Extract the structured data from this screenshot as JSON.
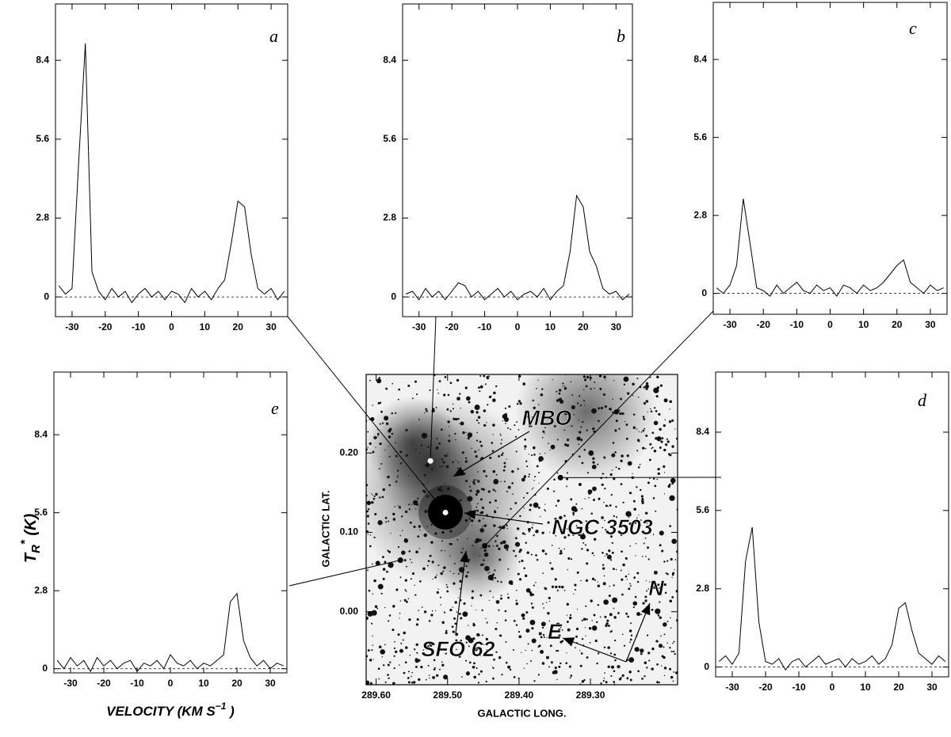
{
  "chart_data": [
    {
      "type": "line",
      "panel_label": "a",
      "x": [
        -34,
        -32,
        -30,
        -28,
        -26,
        -24,
        -22,
        -20,
        -18,
        -16,
        -14,
        -12,
        -10,
        -8,
        -6,
        -4,
        -2,
        0,
        2,
        4,
        6,
        8,
        10,
        12,
        14,
        16,
        18,
        20,
        22,
        24,
        26,
        28,
        30,
        32,
        34
      ],
      "values": [
        0.4,
        0.1,
        0.3,
        4.8,
        9.0,
        0.9,
        0.2,
        -0.1,
        0.3,
        0.0,
        0.2,
        -0.2,
        0.1,
        0.3,
        0.0,
        0.2,
        -0.1,
        0.2,
        0.1,
        -0.2,
        0.3,
        0.0,
        0.2,
        -0.1,
        0.3,
        0.6,
        1.9,
        3.4,
        3.2,
        1.5,
        0.3,
        0.1,
        0.3,
        -0.1,
        0.2
      ],
      "color": "#000000",
      "zero_line": true,
      "xlim": [
        -35,
        35
      ],
      "xticks": [
        -30,
        -20,
        -10,
        0,
        10,
        20,
        30
      ],
      "ylim": [
        -0.7,
        10.4
      ],
      "yticks": [
        0,
        2.8,
        5.6,
        8.4
      ]
    },
    {
      "type": "line",
      "panel_label": "b",
      "x": [
        -34,
        -32,
        -30,
        -28,
        -26,
        -24,
        -22,
        -20,
        -18,
        -16,
        -14,
        -12,
        -10,
        -8,
        -6,
        -4,
        -2,
        0,
        2,
        4,
        6,
        8,
        10,
        12,
        14,
        16,
        18,
        20,
        22,
        24,
        26,
        28,
        30,
        32,
        34
      ],
      "values": [
        0.1,
        0.2,
        -0.1,
        0.3,
        0.0,
        0.2,
        -0.1,
        0.2,
        0.5,
        0.4,
        0.0,
        0.2,
        -0.1,
        0.1,
        0.3,
        0.0,
        0.2,
        -0.1,
        0.1,
        0.2,
        0.0,
        0.3,
        -0.1,
        0.2,
        0.4,
        1.6,
        3.6,
        3.2,
        1.6,
        1.1,
        0.3,
        0.1,
        0.2,
        -0.1,
        0.1
      ],
      "color": "#000000",
      "zero_line": true,
      "xlim": [
        -35,
        35
      ],
      "xticks": [
        -30,
        -20,
        -10,
        0,
        10,
        20,
        30
      ],
      "ylim": [
        -0.7,
        10.4
      ],
      "yticks": [
        0,
        2.8,
        5.6,
        8.4
      ]
    },
    {
      "type": "line",
      "panel_label": "c",
      "x": [
        -34,
        -32,
        -30,
        -28,
        -26,
        -24,
        -22,
        -20,
        -18,
        -16,
        -14,
        -12,
        -10,
        -8,
        -6,
        -4,
        -2,
        0,
        2,
        4,
        6,
        8,
        10,
        12,
        14,
        16,
        18,
        20,
        22,
        24,
        26,
        28,
        30,
        32,
        34
      ],
      "values": [
        0.2,
        0.0,
        0.3,
        1.0,
        3.4,
        1.8,
        0.2,
        0.1,
        -0.1,
        0.3,
        0.0,
        0.2,
        0.4,
        0.1,
        0.0,
        0.3,
        0.1,
        0.2,
        -0.1,
        0.3,
        0.2,
        0.0,
        0.3,
        0.1,
        0.2,
        0.4,
        0.7,
        1.0,
        1.2,
        0.4,
        0.2,
        0.0,
        0.3,
        0.1,
        0.2
      ],
      "color": "#000000",
      "zero_line": true,
      "xlim": [
        -35,
        35
      ],
      "xticks": [
        -30,
        -20,
        -10,
        0,
        10,
        20,
        30
      ],
      "ylim": [
        -0.75,
        10.45
      ],
      "yticks": [
        0,
        2.8,
        5.6,
        8.4
      ]
    },
    {
      "type": "line",
      "panel_label": "e",
      "x": [
        -34,
        -32,
        -30,
        -28,
        -26,
        -24,
        -22,
        -20,
        -18,
        -16,
        -14,
        -12,
        -10,
        -8,
        -6,
        -4,
        -2,
        0,
        2,
        4,
        6,
        8,
        10,
        12,
        14,
        16,
        18,
        20,
        22,
        24,
        26,
        28,
        30,
        32,
        34
      ],
      "values": [
        0.3,
        0.0,
        0.4,
        0.1,
        0.3,
        -0.1,
        0.4,
        0.1,
        0.3,
        0.0,
        0.2,
        0.3,
        -0.1,
        0.2,
        0.1,
        0.3,
        0.0,
        0.5,
        0.2,
        0.1,
        0.3,
        0.0,
        0.2,
        0.1,
        0.3,
        0.5,
        2.4,
        2.7,
        1.0,
        0.4,
        0.1,
        0.3,
        0.0,
        0.2,
        0.1
      ],
      "color": "#000000",
      "zero_line": true,
      "xlim": [
        -35,
        35
      ],
      "xticks": [
        -30,
        -20,
        -10,
        0,
        10,
        20,
        30
      ],
      "ylim": [
        -0.15,
        10.65
      ],
      "yticks": [
        0,
        2.8,
        5.6,
        8.4
      ],
      "ylabel": {
        "symbol": "T",
        "subscript": "R",
        "superscript": "*",
        "unit": " (K)"
      },
      "xlabel": {
        "text": "VELOCITY  (KM S",
        "superscript": "−1",
        "close": " )"
      }
    },
    {
      "type": "line",
      "panel_label": "d",
      "x": [
        -34,
        -32,
        -30,
        -28,
        -26,
        -24,
        -22,
        -20,
        -18,
        -16,
        -14,
        -12,
        -10,
        -8,
        -6,
        -4,
        -2,
        0,
        2,
        4,
        6,
        8,
        10,
        12,
        14,
        16,
        18,
        20,
        22,
        24,
        26,
        28,
        30,
        32,
        34
      ],
      "values": [
        0.2,
        0.4,
        0.1,
        0.5,
        3.8,
        5.0,
        1.6,
        0.2,
        0.1,
        0.3,
        -0.1,
        0.2,
        0.3,
        0.0,
        0.2,
        0.4,
        0.1,
        0.2,
        0.3,
        0.0,
        0.3,
        0.1,
        0.2,
        0.4,
        0.1,
        0.3,
        0.8,
        2.1,
        2.3,
        1.3,
        0.5,
        0.3,
        0.1,
        0.4,
        0.2
      ],
      "color": "#000000",
      "zero_line": true,
      "xlim": [
        -35,
        35
      ],
      "xticks": [
        -30,
        -20,
        -10,
        0,
        10,
        20,
        30
      ],
      "ylim": [
        -0.35,
        10.55
      ],
      "yticks": [
        0,
        2.8,
        5.6,
        8.4
      ]
    },
    {
      "type": "image",
      "xlabel": "GALACTIC LONG.",
      "ylabel": "GALACTIC LAT.",
      "xlim": [
        289.614,
        289.178
      ],
      "xticks": [
        {
          "value": 289.6,
          "label": "289.60"
        },
        {
          "value": 289.5,
          "label": "289.50"
        },
        {
          "value": 289.4,
          "label": "289.40"
        },
        {
          "value": 289.3,
          "label": "289.30"
        }
      ],
      "ylim": [
        -0.092,
        0.299
      ],
      "yticks": [
        {
          "value": 0.2,
          "label": "0.20"
        },
        {
          "value": 0.1,
          "label": "0.10"
        },
        {
          "value": 0,
          "label": "0.00"
        }
      ],
      "points": {
        "x": [
          289.524,
          289.503,
          289.448,
          289.566,
          289.342
        ],
        "y": [
          0.19,
          0.125,
          0.083,
          0.065,
          0.169
        ],
        "colors": [
          "#ffffff",
          "#ffffff",
          "#000000",
          "#000000",
          "#000000"
        ]
      },
      "annotations": [
        "MBO",
        "NGC 3503",
        "SFO 62",
        "N",
        "E"
      ]
    }
  ]
}
